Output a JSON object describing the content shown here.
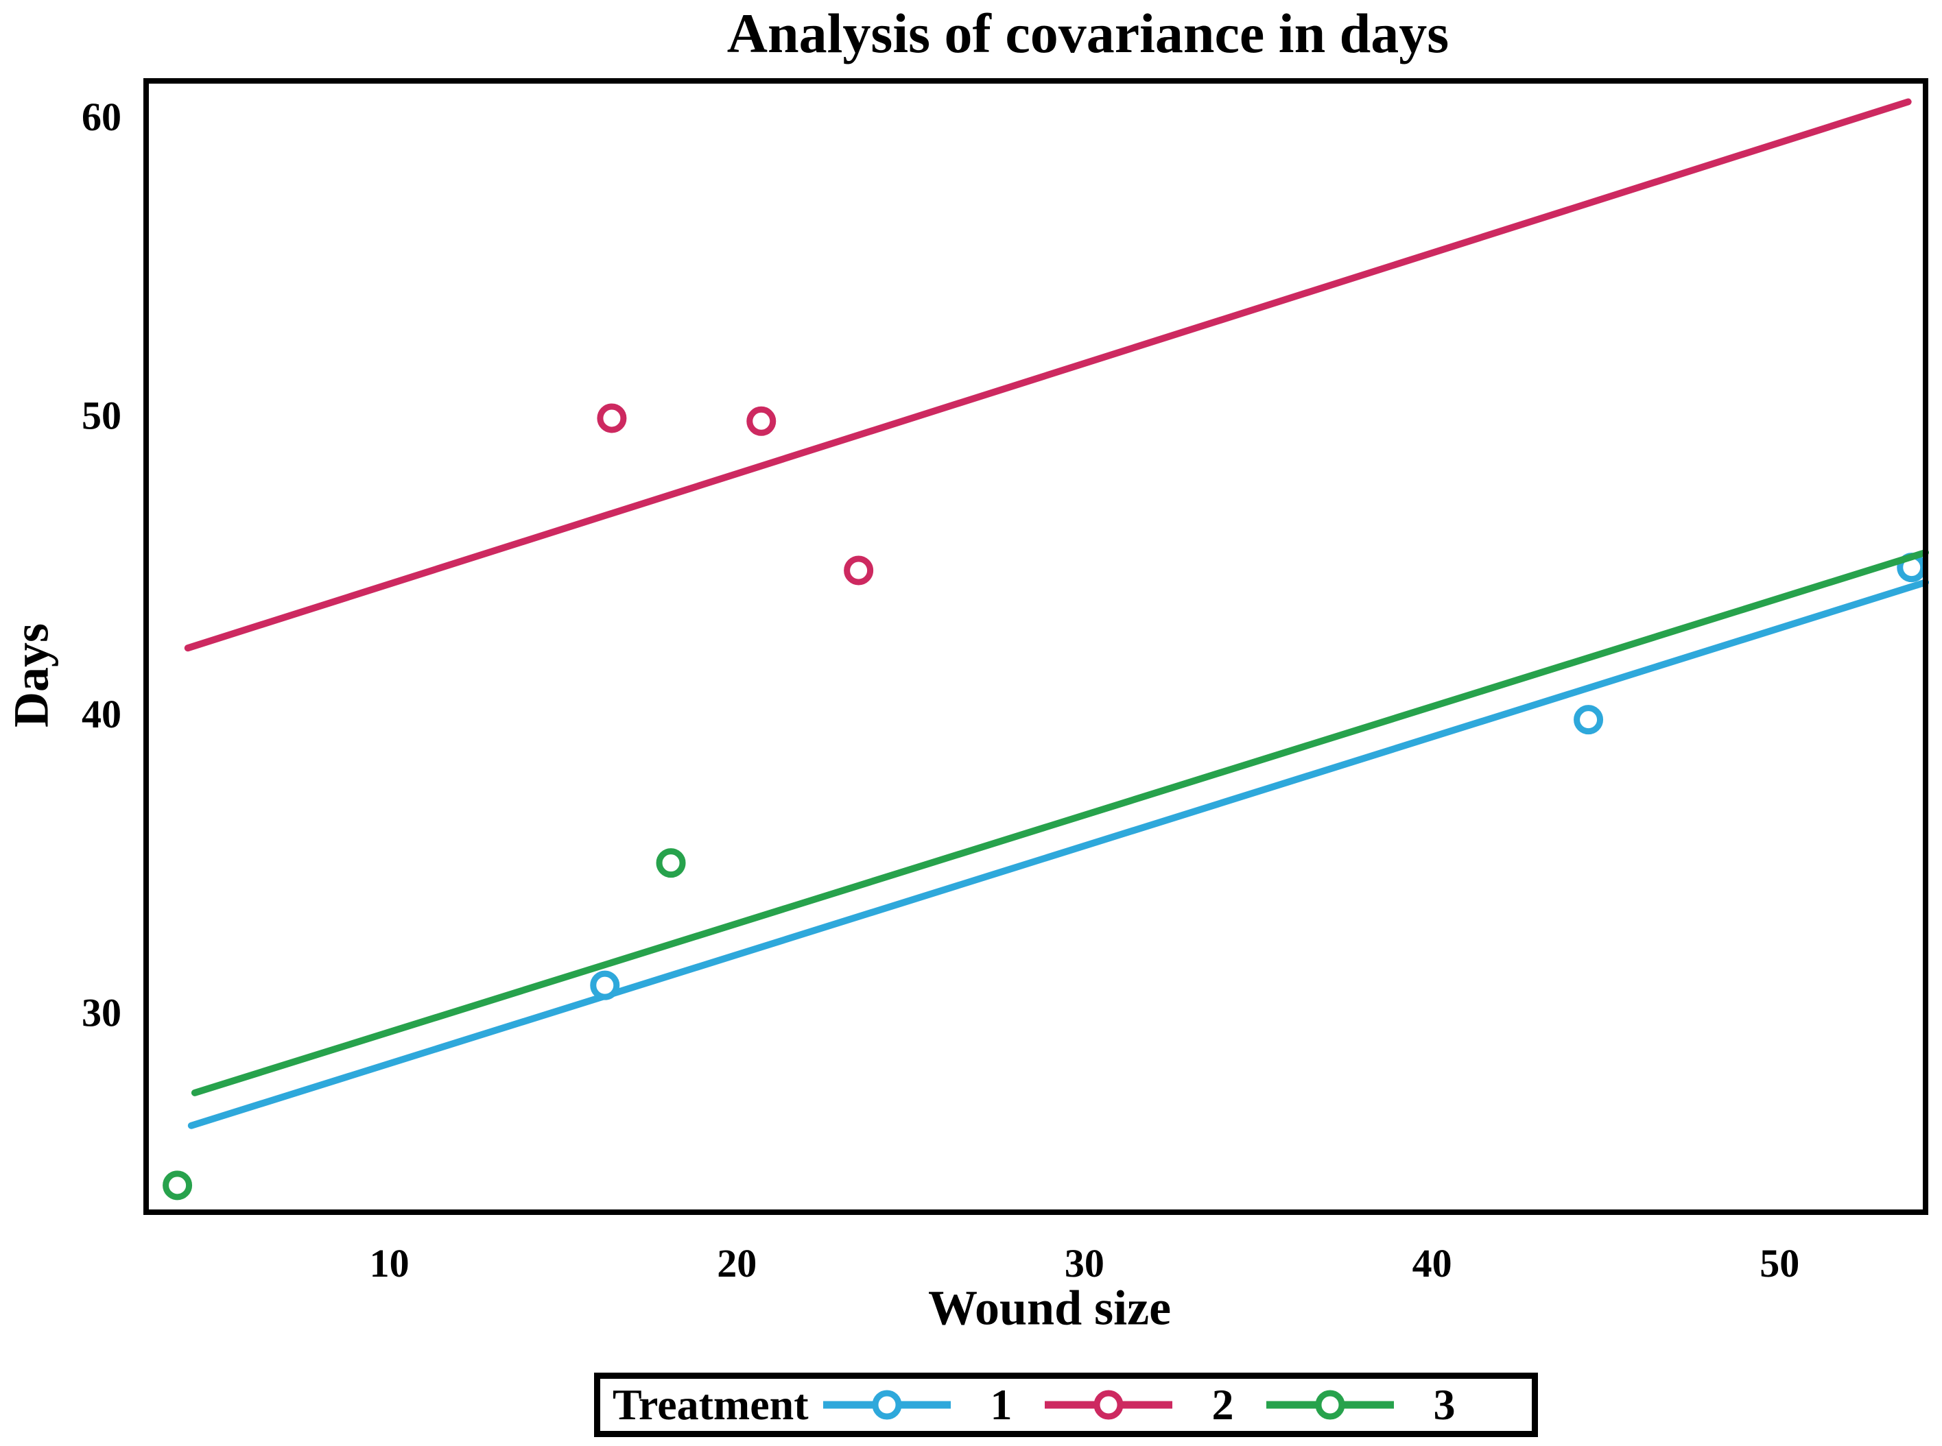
{
  "chart_data": {
    "type": "scatter",
    "title": "Analysis of covariance in days",
    "xlabel": "Wound size",
    "ylabel": "Days",
    "xlim": [
      3.0,
      54.2
    ],
    "ylim": [
      23.3,
      61.2
    ],
    "xticks": [
      10,
      20,
      30,
      40,
      50
    ],
    "yticks": [
      30,
      40,
      50,
      60
    ],
    "grid": false,
    "frame_color": "#000000",
    "background_color": "#ffffff",
    "legend": {
      "title": "Treatment",
      "position": "bottom"
    },
    "series": [
      {
        "name": "treatment-1",
        "label": "1",
        "color": "#2EA8DB",
        "points": [
          [
            16.2,
            30.9
          ],
          [
            44.5,
            39.8
          ],
          [
            53.8,
            44.9
          ]
        ],
        "regression_line": {
          "x": [
            4.3,
            54.2
          ],
          "y": [
            26.2,
            44.4
          ]
        }
      },
      {
        "name": "treatment-2",
        "label": "2",
        "color": "#CD2960",
        "points": [
          [
            16.4,
            49.9
          ],
          [
            20.7,
            49.8
          ],
          [
            23.5,
            44.8
          ]
        ],
        "regression_line": {
          "x": [
            4.2,
            53.7
          ],
          "y": [
            42.2,
            60.5
          ]
        }
      },
      {
        "name": "treatment-3",
        "label": "3",
        "color": "#27A24C",
        "points": [
          [
            3.9,
            24.2
          ],
          [
            18.1,
            35.0
          ]
        ],
        "regression_line": {
          "x": [
            4.4,
            54.2
          ],
          "y": [
            27.3,
            45.4
          ]
        }
      }
    ],
    "marker": {
      "shape": "open-circle",
      "radius": 17,
      "stroke_width": 9
    },
    "line_width": 10
  }
}
